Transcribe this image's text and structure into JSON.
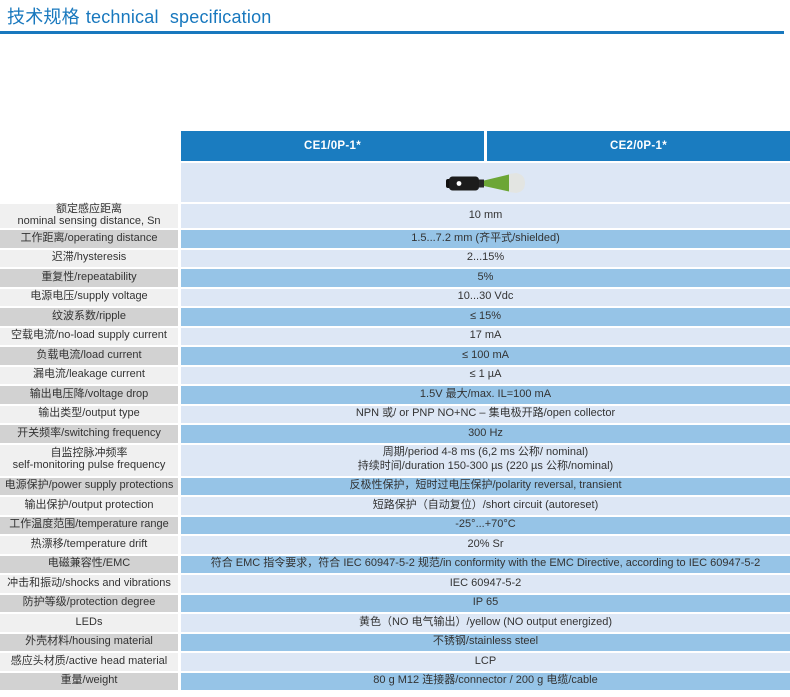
{
  "page": {
    "title_zh": "技术规格",
    "title_en": "technical  specification"
  },
  "colors": {
    "title_blue": "#1878be",
    "header_blue": "#1a7cc0",
    "row_blue_light": "#dde7f5",
    "row_blue_medium": "#96c4e7",
    "label_gray_light": "#f0f0f0",
    "label_gray_dark": "#d2d2d2",
    "sensor_green": "#6ca636",
    "text": "#333333"
  },
  "table": {
    "columns": [
      "CE1/0P-1*",
      "CE2/0P-1*"
    ],
    "product_image": "inductive-proximity-sensor-photo",
    "rows": [
      {
        "label": [
          "额定感应距离",
          "nominal sensing distance, Sn"
        ],
        "value": [
          "10 mm"
        ]
      },
      {
        "label": [
          "工作距离/operating distance"
        ],
        "value": [
          "1.5...7.2 mm (齐平式/shielded)"
        ]
      },
      {
        "label": [
          "迟滞/hysteresis"
        ],
        "value": [
          "2...15%"
        ]
      },
      {
        "label": [
          "重复性/repeatability"
        ],
        "value": [
          "5%"
        ]
      },
      {
        "label": [
          "电源电压/supply voltage"
        ],
        "value": [
          "10...30 Vdc"
        ]
      },
      {
        "label": [
          "纹波系数/ripple"
        ],
        "value": [
          "≤ 15%"
        ]
      },
      {
        "label": [
          "空载电流/no-load supply current"
        ],
        "value": [
          "17 mA"
        ]
      },
      {
        "label": [
          "负载电流/load current"
        ],
        "value": [
          "≤ 100 mA"
        ]
      },
      {
        "label": [
          "漏电流/leakage current"
        ],
        "value": [
          "≤ 1 µA"
        ]
      },
      {
        "label": [
          "输出电压降/voltage drop"
        ],
        "value": [
          "1.5V 最大/max. IL=100 mA"
        ]
      },
      {
        "label": [
          "输出类型/output type"
        ],
        "value": [
          "NPN 或/ or PNP NO+NC – 集电极开路/open collector"
        ]
      },
      {
        "label": [
          "开关频率/switching frequency"
        ],
        "value": [
          "300 Hz"
        ]
      },
      {
        "label": [
          "自监控脉冲频率",
          "self-monitoring pulse frequency"
        ],
        "value": [
          "周期/period 4-8 ms (6,2 ms 公称/ nominal)",
          "持续时间/duration 150-300 µs (220 µs 公称/nominal)"
        ]
      },
      {
        "label": [
          "电源保护/power supply protections"
        ],
        "value": [
          "反极性保护，短时过电压保护/polarity reversal, transient"
        ]
      },
      {
        "label": [
          "输出保护/output protection"
        ],
        "value": [
          "短路保护（自动复位）/short circuit (autoreset)"
        ]
      },
      {
        "label": [
          "工作温度范围/temperature range"
        ],
        "value": [
          "-25°...+70°C"
        ]
      },
      {
        "label": [
          "热漂移/temperature drift"
        ],
        "value": [
          "20% Sr"
        ]
      },
      {
        "label": [
          "电磁兼容性/EMC"
        ],
        "value": [
          "符合 EMC 指令要求，符合 IEC 60947-5-2 规范/in conformity with the EMC Directive, according to IEC 60947-5-2"
        ]
      },
      {
        "label": [
          "冲击和振动/shocks and vibrations"
        ],
        "value": [
          "IEC 60947-5-2"
        ]
      },
      {
        "label": [
          "防护等级/protection degree"
        ],
        "value": [
          "IP 65"
        ]
      },
      {
        "label": [
          "LEDs"
        ],
        "value": [
          "黄色（NO 电气输出）/yellow (NO output energized)"
        ]
      },
      {
        "label": [
          "外壳材料/housing material"
        ],
        "value": [
          "不锈钢/stainless steel"
        ]
      },
      {
        "label": [
          "感应头材质/active head material"
        ],
        "value": [
          "LCP"
        ]
      },
      {
        "label": [
          "重量/weight"
        ],
        "value": [
          "80 g M12 连接器/connector / 200 g 电缆/cable"
        ]
      }
    ]
  }
}
